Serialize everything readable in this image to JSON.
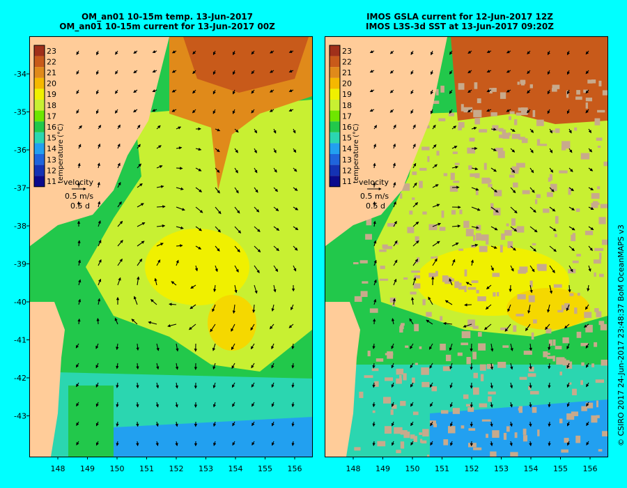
{
  "left_panel": {
    "title_line1": "OM_an01 10-15m temp. 13-Jun-2017",
    "title_line2": "OM_an01 10-15m current for 13-Jun-2017 00Z",
    "colorbar_label": "temperature (°C)",
    "velocity_label": "velocity",
    "velocity_scale": "0.5 m/s",
    "velocity_time": "0.5 d"
  },
  "right_panel": {
    "title_line1": "IMOS GSLA current for 12-Jun-2017 12Z",
    "title_line2": "IMOS L3S-3d SST at 13-Jun-2017 09:20Z",
    "colorbar_label": "temperature (°C)",
    "velocity_label": "velocity",
    "velocity_scale": "0.5 m/s",
    "velocity_time": "0.5 d"
  },
  "colorbar_ticks": [
    "23",
    "22",
    "21",
    "20",
    "19",
    "18",
    "17",
    "16",
    "15",
    "14",
    "13",
    "12",
    "11"
  ],
  "colorbar_colors": [
    "#a0301a",
    "#c85a1a",
    "#e08a1a",
    "#f5b800",
    "#f0f000",
    "#c8f032",
    "#6ee600",
    "#22c84b",
    "#2bd6b0",
    "#22a0f0",
    "#1f64dc",
    "#1432b4",
    "#0a0a8c"
  ],
  "lat_ticks": [
    "-34",
    "-35",
    "-36",
    "-37",
    "-38",
    "-39",
    "-40",
    "-41",
    "-42",
    "-43"
  ],
  "lon_ticks": [
    "148",
    "149",
    "150",
    "151",
    "152",
    "153",
    "154",
    "155",
    "156"
  ],
  "credit": "© CSIRO 2017   24-Jun-2017 23:48:37 BoM OceanMAPS v3",
  "colors": {
    "background": "#00ffff",
    "land": "#ffcc99",
    "sst_gap": "#c8aa8c"
  }
}
